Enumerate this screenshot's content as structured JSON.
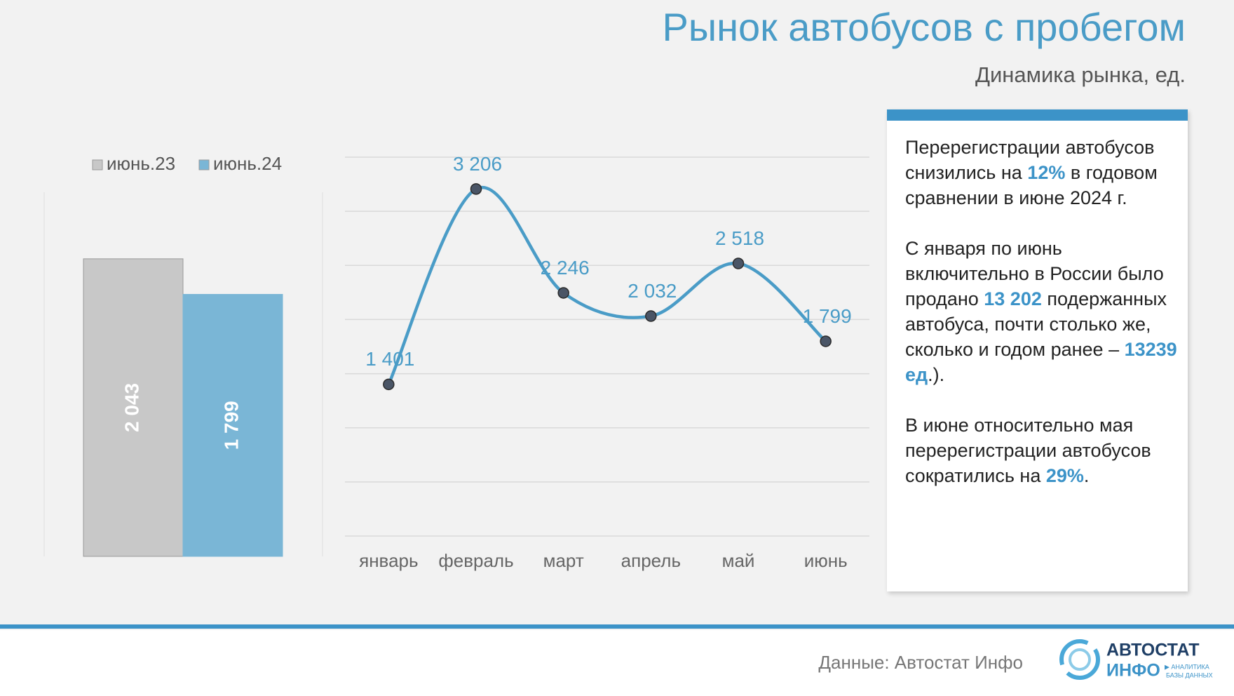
{
  "header": {
    "title": "Рынок автобусов с пробегом",
    "subtitle": "Динамика рынка, ед."
  },
  "chart_data": [
    {
      "type": "bar",
      "series": [
        {
          "name": "июнь.23",
          "color": "#c8c8c8",
          "values": [
            2043
          ],
          "value_labels": [
            "2 043"
          ]
        },
        {
          "name": "июнь.24",
          "color": "#7ab6d6",
          "values": [
            1799
          ],
          "value_labels": [
            "1 799"
          ]
        }
      ],
      "ylim": [
        0,
        2500
      ]
    },
    {
      "type": "line",
      "categories": [
        "январь",
        "февраль",
        "март",
        "апрель",
        "май",
        "июнь"
      ],
      "values": [
        1401,
        3206,
        2246,
        2032,
        2518,
        1799
      ],
      "value_labels": [
        "1 401",
        "3 206",
        "2 246",
        "2 032",
        "2 518",
        "1 799"
      ],
      "color": "#4a9cc7",
      "ylim": [
        0,
        3500
      ],
      "yticks": [
        0,
        500,
        1000,
        1500,
        2000,
        2500,
        3000,
        3500
      ],
      "grid": true
    }
  ],
  "note": {
    "paragraphs": [
      [
        "Перерегистрации автобусов снизились на ",
        "12%",
        " в годовом сравнении в июне 2024 г."
      ],
      [
        "С января по июнь включительно в России было продано ",
        "13 202",
        " подержанных автобуса, почти столько же, сколько и годом ранее – ",
        "13239 ед",
        ".)."
      ],
      [
        "В июне относительно мая перерегистрации автобусов сократились на ",
        "29%",
        "."
      ]
    ]
  },
  "footer": {
    "source": "Данные: Автостат Инфо",
    "logo": [
      "АВТОСТАТ",
      "ИНФО",
      "▶ АНАЛИТИКА",
      "БАЗЫ ДАННЫХ"
    ]
  }
}
